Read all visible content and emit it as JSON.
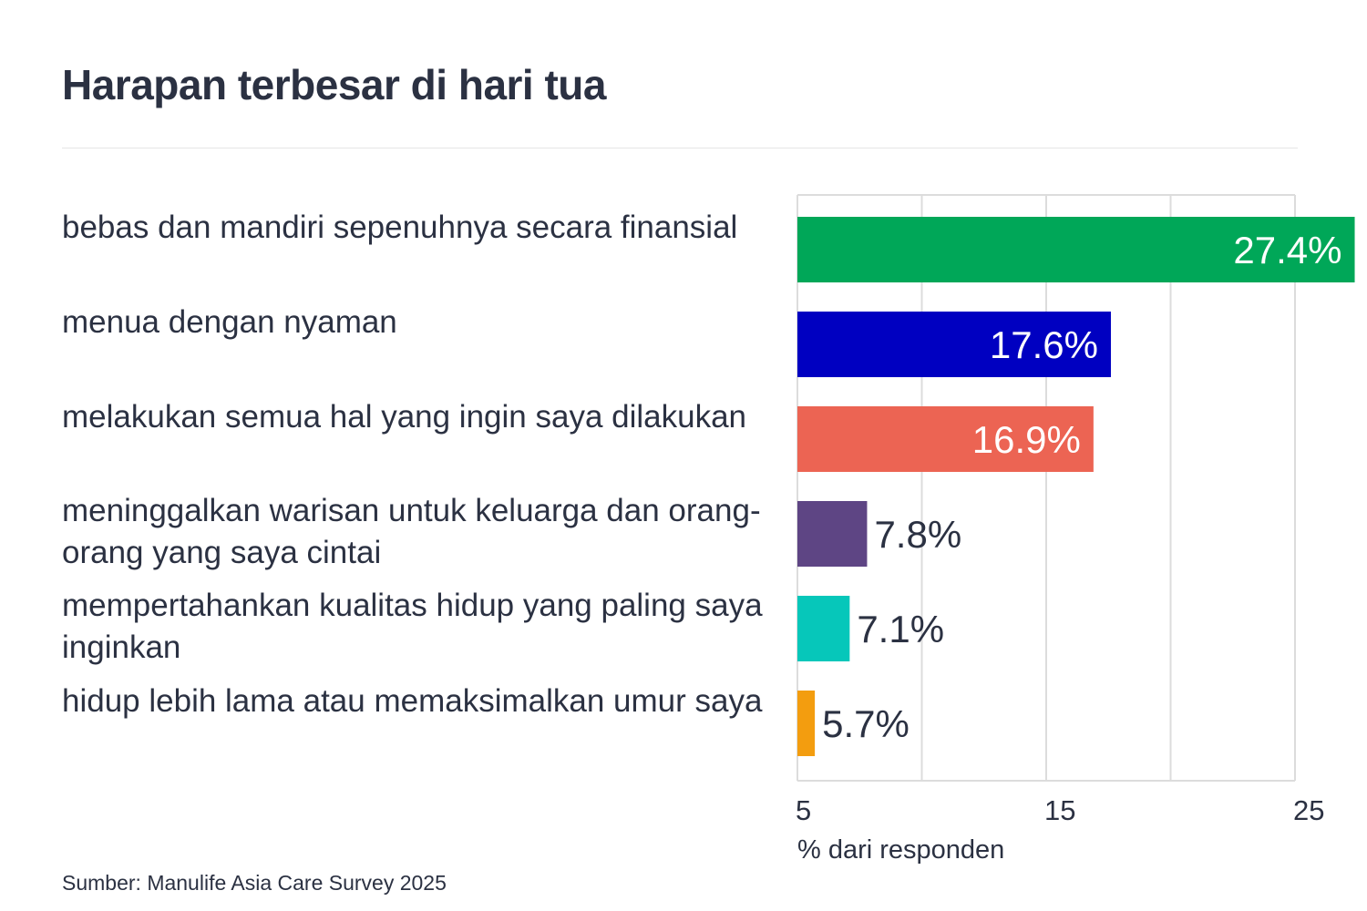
{
  "title": "Harapan terbesar di hari tua",
  "source": "Sumber: Manulife Asia Care Survey 2025",
  "chart_data": {
    "type": "bar",
    "orientation": "horizontal",
    "title": "Harapan terbesar di hari tua",
    "xlabel": "% dari responden",
    "ylabel": "",
    "xlim": [
      5,
      25
    ],
    "x_ticks": [
      5,
      15,
      25
    ],
    "grid": true,
    "categories": [
      "bebas dan mandiri sepenuhnya secara finansial",
      "menua dengan nyaman",
      "melakukan semua hal yang ingin saya dilakukan",
      "meninggalkan warisan untuk keluarga dan orang-orang yang saya cintai",
      "mempertahankan kualitas hidup yang paling saya inginkan",
      "hidup lebih lama atau memaksimalkan umur saya"
    ],
    "values": [
      27.4,
      17.6,
      16.9,
      7.8,
      7.1,
      5.7
    ],
    "value_labels": [
      "27.4%",
      "17.6%",
      "16.9%",
      "7.8%",
      "7.1%",
      "5.7%"
    ],
    "colors": [
      "#00a758",
      "#0000c1",
      "#ec6453",
      "#5e4584",
      "#06c7ba",
      "#f39d0f"
    ]
  }
}
